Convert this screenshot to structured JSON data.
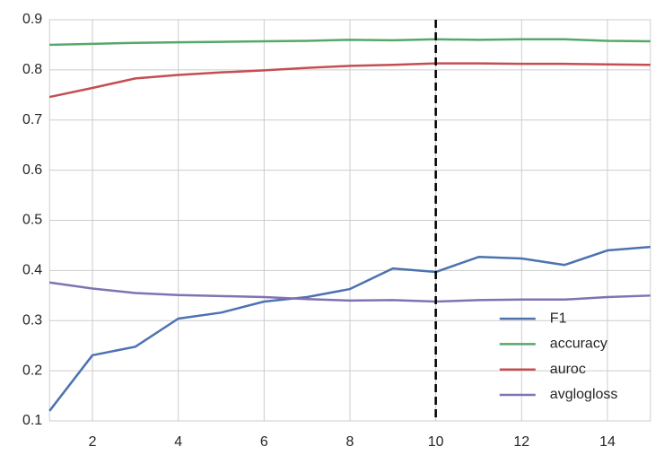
{
  "chart_data": {
    "type": "line",
    "x": [
      1,
      2,
      3,
      4,
      5,
      6,
      7,
      8,
      9,
      10,
      11,
      12,
      13,
      14,
      15
    ],
    "series": [
      {
        "name": "F1",
        "color": "#4c72b0",
        "values": [
          0.12,
          0.231,
          0.248,
          0.304,
          0.316,
          0.338,
          0.347,
          0.363,
          0.404,
          0.397,
          0.427,
          0.424,
          0.411,
          0.44,
          0.447
        ]
      },
      {
        "name": "accuracy",
        "color": "#55a868",
        "values": [
          0.85,
          0.852,
          0.854,
          0.855,
          0.856,
          0.857,
          0.858,
          0.86,
          0.859,
          0.861,
          0.86,
          0.861,
          0.861,
          0.858,
          0.857
        ]
      },
      {
        "name": "auroc",
        "color": "#c44e52",
        "values": [
          0.746,
          0.764,
          0.783,
          0.79,
          0.795,
          0.799,
          0.804,
          0.808,
          0.81,
          0.813,
          0.813,
          0.812,
          0.812,
          0.811,
          0.81
        ]
      },
      {
        "name": "avglogloss",
        "color": "#8172b2",
        "values": [
          0.376,
          0.364,
          0.355,
          0.351,
          0.349,
          0.347,
          0.343,
          0.34,
          0.341,
          0.338,
          0.341,
          0.342,
          0.342,
          0.347,
          0.35
        ]
      }
    ],
    "xlim": [
      1,
      15
    ],
    "ylim": [
      0.1,
      0.9
    ],
    "xticks": [
      2,
      4,
      6,
      8,
      10,
      12,
      14
    ],
    "yticks": [
      0.1,
      0.2,
      0.3,
      0.4,
      0.5,
      0.6,
      0.7,
      0.8,
      0.9
    ],
    "vline": 10,
    "grid": true,
    "legend": "lower right"
  }
}
